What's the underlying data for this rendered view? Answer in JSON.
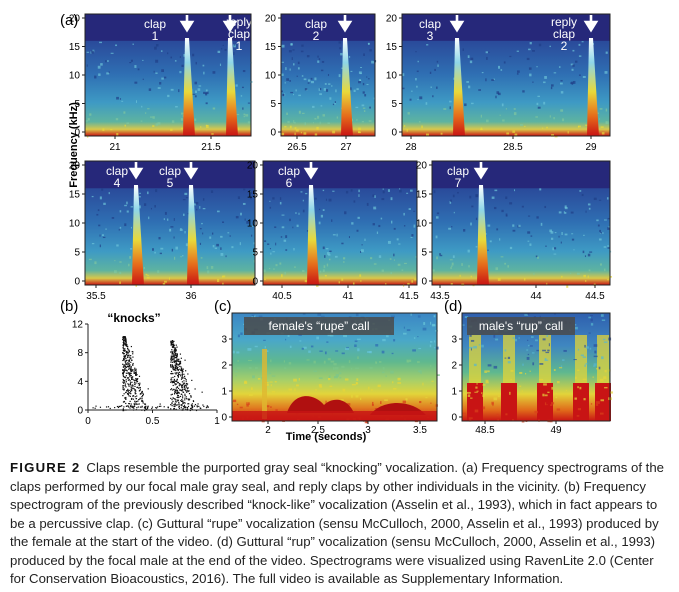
{
  "figure": {
    "panel_labels": [
      "(a)",
      "(b)",
      "(c)",
      "(d)"
    ],
    "y_axis_label": "Frequency (kHz)",
    "x_axis_label": "Time (seconds)",
    "panel_a": {
      "rows": [
        [
          {
            "id": "a1",
            "y_ticks": [
              "20",
              "15",
              "10",
              "5",
              "0"
            ],
            "x_ticks": [
              "21",
              "21.5"
            ],
            "events": [
              {
                "label": [
                  "clap",
                  "1"
                ]
              },
              {
                "label": [
                  "reply",
                  "clap",
                  "1"
                ]
              }
            ]
          },
          {
            "id": "a2",
            "y_ticks": [
              "20",
              "15",
              "10",
              "5",
              "0"
            ],
            "x_ticks": [
              "26.5",
              "27"
            ],
            "events": [
              {
                "label": [
                  "clap",
                  "2"
                ]
              }
            ]
          },
          {
            "id": "a3",
            "y_ticks": [
              "20",
              "15",
              "10",
              "5",
              "0"
            ],
            "x_ticks": [
              "28",
              "28.5",
              "29"
            ],
            "events": [
              {
                "label": [
                  "clap",
                  "3"
                ]
              },
              {
                "label": [
                  "reply",
                  "clap",
                  "2"
                ]
              }
            ]
          }
        ],
        [
          {
            "id": "a4",
            "y_ticks": [
              "20",
              "15",
              "10",
              "5",
              "0"
            ],
            "x_ticks": [
              "35.5",
              "36"
            ],
            "events": [
              {
                "label": [
                  "clap",
                  "4"
                ]
              },
              {
                "label": [
                  "clap",
                  "5"
                ]
              }
            ]
          },
          {
            "id": "a5",
            "y_ticks": [
              "20",
              "15",
              "10",
              "5",
              "0"
            ],
            "x_ticks": [
              "40.5",
              "41",
              "41.5"
            ],
            "events": [
              {
                "label": [
                  "clap",
                  "6"
                ]
              }
            ]
          },
          {
            "id": "a6",
            "y_ticks": [
              "20",
              "15",
              "10",
              "5",
              "0"
            ],
            "x_ticks": [
              "43.5",
              "44",
              "44.5"
            ],
            "events": [
              {
                "label": [
                  "clap",
                  "7"
                ]
              }
            ]
          }
        ]
      ]
    },
    "panel_b": {
      "title": "“knocks”",
      "y_ticks": [
        "12",
        "8",
        "4",
        "0"
      ],
      "x_ticks": [
        "0",
        "0.5",
        "1"
      ]
    },
    "panel_c": {
      "title": "female's “rupe” call",
      "y_ticks": [
        "3",
        "2",
        "1",
        "0"
      ],
      "x_ticks": [
        "2",
        "2.5",
        "3",
        "3.5"
      ]
    },
    "panel_d": {
      "title": "male's “rup” call",
      "y_ticks": [
        "3",
        "2",
        "1",
        "0"
      ],
      "x_ticks": [
        "48.5",
        "49"
      ]
    },
    "colors": {
      "background_dark": "#26287a",
      "accent_red": "#c81414",
      "accent_yellow": "#e8d93a",
      "accent_green": "#5fb88f",
      "accent_cyan": "#3aa0cf"
    }
  },
  "caption": {
    "lead": "FIGURE 2",
    "text": "Claps resemble the purported gray seal “knocking” vocalization. (a) Frequency spectrograms of the claps performed by our focal male gray seal, and reply claps by other individuals in the vicinity. (b) Frequency spectrogram of the previously described “knock-like” vocalization (Asselin et al., 1993), which in fact appears to be a percussive clap. (c) Guttural “rupe” vocalization (sensu McCulloch, 2000, Asselin et al., 1993) produced by the female at the start of the video. (d) Guttural “rup” vocalization (sensu McCulloch, 2000, Asselin et al., 1993) produced by the focal male at the end of the video. Spectrograms were visualized using RavenLite 2.0 (Center for Conservation Bioacoustics, 2016). The full video is available as Supplementary Information."
  }
}
